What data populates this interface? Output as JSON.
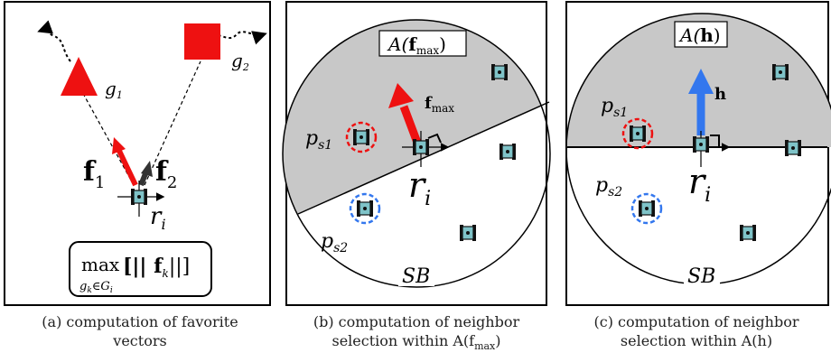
{
  "panel_a": {
    "goal1": "g",
    "goal1_sub": "1",
    "goal2": "g",
    "goal2_sub": "2",
    "vec1": "f",
    "vec1_sub": "1",
    "vec2": "f",
    "vec2_sub": "2",
    "robot": "r",
    "robot_sub": "i",
    "formula_op": "max",
    "formula_body": "[|| f",
    "formula_body_sub": "k",
    "formula_body_end": "||]",
    "formula_under": "g",
    "formula_under_sub": "k",
    "formula_under_rest": "∈G",
    "formula_under_sub2": "i",
    "caption_line1": "(a) computation of favorite",
    "caption_line2": "vectors"
  },
  "panel_b": {
    "area_label": "A(",
    "area_label_vec": "f",
    "area_label_sub": "max",
    "area_label_end": ")",
    "vec": "f",
    "vec_sub": "max",
    "ps1": "p",
    "ps1_sub": "s1",
    "ps2": "p",
    "ps2_sub": "s2",
    "robot": "r",
    "robot_sub": "i",
    "sb": "SB",
    "caption_line1": "(b) computation of neighbor",
    "caption_line2": "selection within A(f",
    "caption_line2_sub": "max",
    "caption_line2_end": ")"
  },
  "panel_c": {
    "area_label": "A(",
    "area_label_vec": "h",
    "area_label_end": ")",
    "vec": "h",
    "ps1": "p",
    "ps1_sub": "s1",
    "ps2": "p",
    "ps2_sub": "s2",
    "robot": "r",
    "robot_sub": "i",
    "sb": "SB",
    "caption_line1": "(c) computation of neighbor",
    "caption_line2": "selection within A(h)"
  },
  "colors": {
    "red": "#ee1111",
    "blue": "#3377ee",
    "gray": "#c8c8c8",
    "robot": "#7fc3c8"
  }
}
